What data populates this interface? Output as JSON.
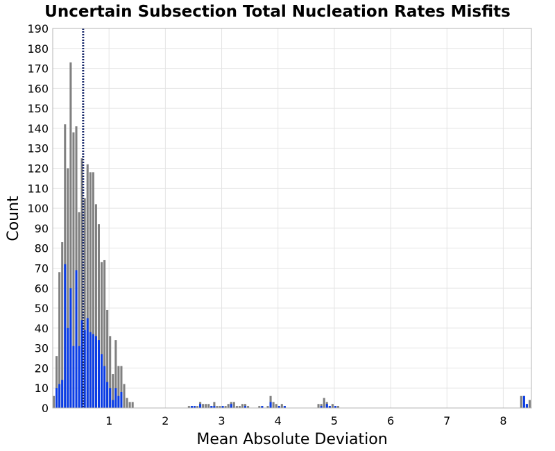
{
  "chart_data": {
    "type": "bar",
    "title": "Uncertain Subsection Total Nucleation Rates Misfits",
    "xlabel": "Mean Absolute Deviation",
    "ylabel": "Count",
    "xlim": [
      0,
      8.5
    ],
    "ylim": [
      0,
      190
    ],
    "x_ticks": [
      1,
      2,
      3,
      4,
      5,
      6,
      7,
      8
    ],
    "y_ticks": [
      0,
      10,
      20,
      30,
      40,
      50,
      60,
      70,
      80,
      90,
      100,
      110,
      120,
      130,
      140,
      150,
      160,
      170,
      180,
      190
    ],
    "grid": true,
    "bin_width": 0.05,
    "reference_line": {
      "x": 0.54,
      "style": "dotted",
      "color": "#1a2a6c"
    },
    "series": [
      {
        "color": "#808080",
        "bins": [
          [
            0.025,
            6
          ],
          [
            0.075,
            26
          ],
          [
            0.125,
            68
          ],
          [
            0.175,
            83
          ],
          [
            0.225,
            142
          ],
          [
            0.275,
            120
          ],
          [
            0.325,
            173
          ],
          [
            0.375,
            138
          ],
          [
            0.425,
            141
          ],
          [
            0.475,
            98
          ],
          [
            0.525,
            125
          ],
          [
            0.575,
            105
          ],
          [
            0.625,
            122
          ],
          [
            0.675,
            118
          ],
          [
            0.725,
            118
          ],
          [
            0.775,
            102
          ],
          [
            0.825,
            92
          ],
          [
            0.875,
            73
          ],
          [
            0.925,
            74
          ],
          [
            0.975,
            49
          ],
          [
            1.025,
            36
          ],
          [
            1.075,
            17
          ],
          [
            1.125,
            34
          ],
          [
            1.175,
            21
          ],
          [
            1.225,
            21
          ],
          [
            1.275,
            12
          ],
          [
            1.325,
            5
          ],
          [
            1.375,
            3
          ],
          [
            1.425,
            3
          ],
          [
            2.425,
            1
          ],
          [
            2.475,
            1
          ],
          [
            2.525,
            1
          ],
          [
            2.575,
            1
          ],
          [
            2.625,
            3
          ],
          [
            2.675,
            2
          ],
          [
            2.725,
            2
          ],
          [
            2.775,
            2
          ],
          [
            2.825,
            1
          ],
          [
            2.875,
            3
          ],
          [
            2.925,
            1
          ],
          [
            2.975,
            1
          ],
          [
            3.025,
            1
          ],
          [
            3.075,
            1
          ],
          [
            3.125,
            2
          ],
          [
            3.175,
            3
          ],
          [
            3.225,
            3
          ],
          [
            3.275,
            1
          ],
          [
            3.325,
            1
          ],
          [
            3.375,
            2
          ],
          [
            3.425,
            2
          ],
          [
            3.475,
            1
          ],
          [
            3.675,
            1
          ],
          [
            3.725,
            1
          ],
          [
            3.825,
            1
          ],
          [
            3.875,
            6
          ],
          [
            3.925,
            3
          ],
          [
            3.975,
            2
          ],
          [
            4.025,
            1
          ],
          [
            4.075,
            2
          ],
          [
            4.125,
            1
          ],
          [
            4.725,
            2
          ],
          [
            4.775,
            2
          ],
          [
            4.825,
            5
          ],
          [
            4.875,
            3
          ],
          [
            4.925,
            1
          ],
          [
            4.975,
            2
          ],
          [
            5.025,
            1
          ],
          [
            5.075,
            1
          ],
          [
            8.325,
            6
          ],
          [
            8.375,
            6
          ],
          [
            8.425,
            2
          ],
          [
            8.475,
            4
          ]
        ]
      },
      {
        "color": "#0a3ce6",
        "bins": [
          [
            0.075,
            10
          ],
          [
            0.125,
            12
          ],
          [
            0.175,
            14
          ],
          [
            0.225,
            72
          ],
          [
            0.275,
            40
          ],
          [
            0.325,
            60
          ],
          [
            0.375,
            31
          ],
          [
            0.425,
            69
          ],
          [
            0.475,
            31
          ],
          [
            0.525,
            44
          ],
          [
            0.575,
            39
          ],
          [
            0.625,
            45
          ],
          [
            0.675,
            38
          ],
          [
            0.725,
            37
          ],
          [
            0.775,
            36
          ],
          [
            0.825,
            34
          ],
          [
            0.875,
            27
          ],
          [
            0.925,
            21
          ],
          [
            0.975,
            13
          ],
          [
            1.025,
            10
          ],
          [
            1.075,
            4
          ],
          [
            1.125,
            10
          ],
          [
            1.175,
            6
          ],
          [
            1.225,
            8
          ],
          [
            2.475,
            1
          ],
          [
            2.525,
            1
          ],
          [
            2.625,
            2
          ],
          [
            2.825,
            1
          ],
          [
            2.875,
            1
          ],
          [
            3.025,
            1
          ],
          [
            3.175,
            2
          ],
          [
            3.425,
            1
          ],
          [
            3.725,
            1
          ],
          [
            3.875,
            3
          ],
          [
            4.025,
            1
          ],
          [
            4.125,
            1
          ],
          [
            4.775,
            1
          ],
          [
            4.875,
            2
          ],
          [
            4.925,
            1
          ],
          [
            5.025,
            1
          ],
          [
            8.375,
            6
          ],
          [
            8.425,
            2
          ]
        ]
      }
    ]
  }
}
